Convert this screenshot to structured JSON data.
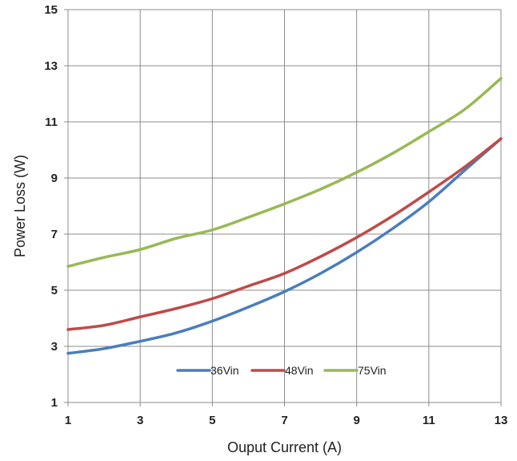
{
  "chart_data": {
    "type": "line",
    "title": "",
    "xlabel": "Ouput Current (A)",
    "ylabel": "Power Loss (W)",
    "xlim": [
      1,
      13
    ],
    "ylim": [
      1,
      15
    ],
    "x_ticks": [
      "1",
      "3",
      "5",
      "7",
      "9",
      "11",
      "13"
    ],
    "y_ticks": [
      "1",
      "3",
      "5",
      "7",
      "9",
      "11",
      "13",
      "15"
    ],
    "grid": true,
    "legend_position": "bottom-center inside plot",
    "series": [
      {
        "name": "36Vin",
        "color": "#4a7ebb",
        "x": [
          1,
          2,
          3,
          4,
          5,
          6,
          7,
          8,
          9,
          10,
          11,
          12,
          13
        ],
        "y": [
          2.75,
          2.92,
          3.18,
          3.48,
          3.9,
          4.4,
          4.95,
          5.6,
          6.35,
          7.2,
          8.15,
          9.28,
          10.4
        ]
      },
      {
        "name": "48Vin",
        "color": "#be4b48",
        "x": [
          1,
          2,
          3,
          4,
          5,
          6,
          7,
          8,
          9,
          10,
          11,
          12,
          13
        ],
        "y": [
          3.6,
          3.75,
          4.05,
          4.35,
          4.7,
          5.15,
          5.6,
          6.2,
          6.88,
          7.65,
          8.5,
          9.4,
          10.4
        ]
      },
      {
        "name": "75Vin",
        "color": "#98b954",
        "x": [
          1,
          2,
          3,
          4,
          5,
          6,
          7,
          8,
          9,
          10,
          11,
          12,
          13
        ],
        "y": [
          5.85,
          6.17,
          6.45,
          6.85,
          7.15,
          7.6,
          8.08,
          8.6,
          9.2,
          9.88,
          10.65,
          11.45,
          12.55
        ]
      }
    ]
  }
}
